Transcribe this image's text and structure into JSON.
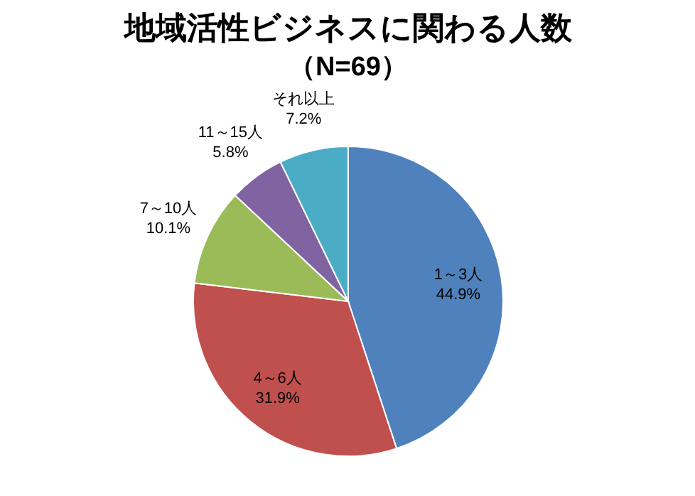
{
  "chart_data": {
    "type": "pie",
    "title": "地域活性ビジネスに関わる人数",
    "subtitle": "（N=69）",
    "categories": [
      "1～3人",
      "4～6人",
      "7～10人",
      "11～15人",
      "それ以上"
    ],
    "values": [
      44.9,
      31.9,
      10.1,
      5.8,
      7.2
    ],
    "value_labels": [
      "44.9%",
      "31.9%",
      "10.1%",
      "5.8%",
      "7.2%"
    ],
    "colors": [
      "#4f81bd",
      "#c0504d",
      "#9bbb59",
      "#8064a2",
      "#4bacc6"
    ]
  }
}
